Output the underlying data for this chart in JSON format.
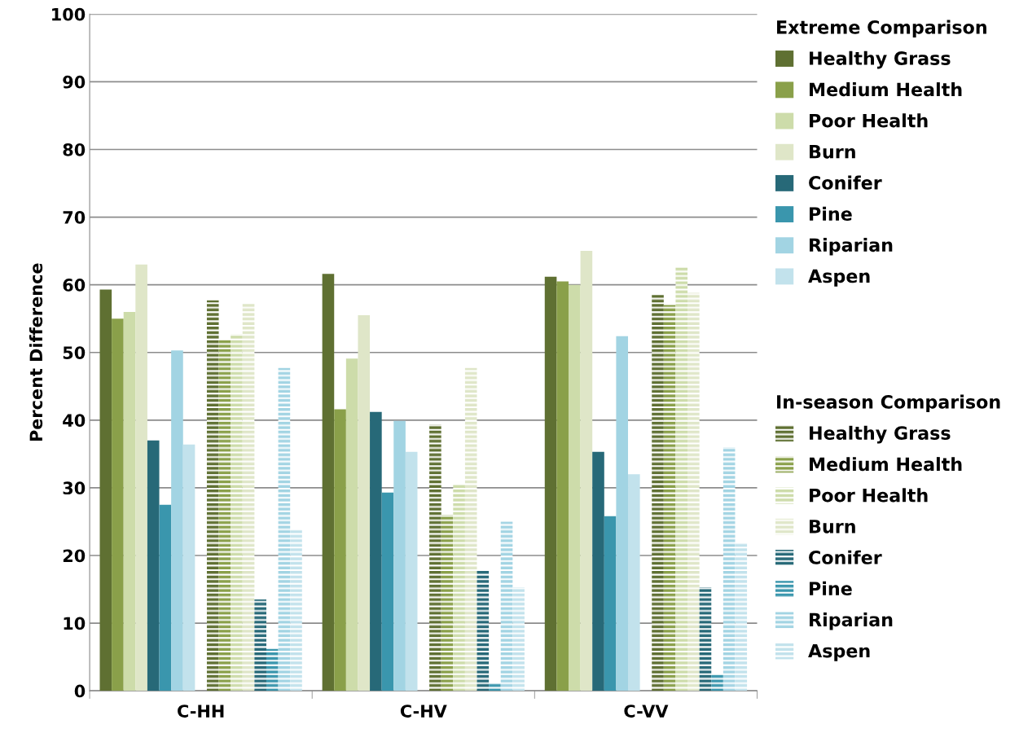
{
  "chart_data": {
    "type": "bar",
    "ylabel": "Percent Difference",
    "categories": [
      "C-HH",
      "C-HV",
      "C-VV"
    ],
    "ylim": [
      0,
      100
    ],
    "yticks": [
      0,
      10,
      20,
      30,
      40,
      50,
      60,
      70,
      80,
      90,
      100
    ],
    "grid": "y",
    "legend": "right",
    "legend_title": "Extreme Comparison",
    "annotations": [
      "In-season Comparison"
    ],
    "series": [
      {
        "name": "Healthy Grass",
        "color": "#5f7032",
        "values": [
          59.3,
          61.6,
          61.2
        ]
      },
      {
        "name": "Medium Health",
        "color": "#8aa04a",
        "values": [
          55,
          41.6,
          60.5
        ]
      },
      {
        "name": "Poor Health",
        "color": "#cddcaa",
        "values": [
          56,
          49.1,
          60
        ]
      },
      {
        "name": "Burn",
        "color": "#dfe6c8",
        "values": [
          63,
          55.5,
          65
        ]
      },
      {
        "name": "Conifer",
        "color": "#276978",
        "values": [
          37,
          41.2,
          35.3
        ]
      },
      {
        "name": "Pine",
        "color": "#3a96ad",
        "values": [
          27.5,
          29.3,
          25.8
        ]
      },
      {
        "name": "Riparian",
        "color": "#a2d4e3",
        "values": [
          50.3,
          39.9,
          52.4
        ]
      },
      {
        "name": "Aspen",
        "color": "#c2e2ec",
        "values": [
          36.4,
          35.3,
          32
        ]
      },
      {
        "name": "Healthy Grass",
        "color": "#5f7032",
        "line_style": "dashed",
        "values": [
          57.7,
          39.3,
          58.5
        ]
      },
      {
        "name": "Medium Health",
        "color": "#8aa04a",
        "line_style": "dashed",
        "values": [
          52,
          26,
          57
        ]
      },
      {
        "name": "Poor Health",
        "color": "#cddcaa",
        "line_style": "dashed",
        "values": [
          52.7,
          30.5,
          62.7
        ]
      },
      {
        "name": "Burn",
        "color": "#dfe6c8",
        "line_style": "dashed",
        "values": [
          57.3,
          47.7,
          58.8
        ]
      },
      {
        "name": "Conifer",
        "color": "#276978",
        "line_style": "dashed",
        "values": [
          13.5,
          17.8,
          15.3
        ]
      },
      {
        "name": "Pine",
        "color": "#3a96ad",
        "line_style": "dashed",
        "values": [
          6.2,
          1.1,
          2.4
        ]
      },
      {
        "name": "Riparian",
        "color": "#a2d4e3",
        "line_style": "dashed",
        "values": [
          47.7,
          25,
          36
        ]
      },
      {
        "name": "Aspen",
        "color": "#c2e2ec",
        "line_style": "dashed",
        "values": [
          23.8,
          15.3,
          21.8
        ]
      }
    ]
  }
}
